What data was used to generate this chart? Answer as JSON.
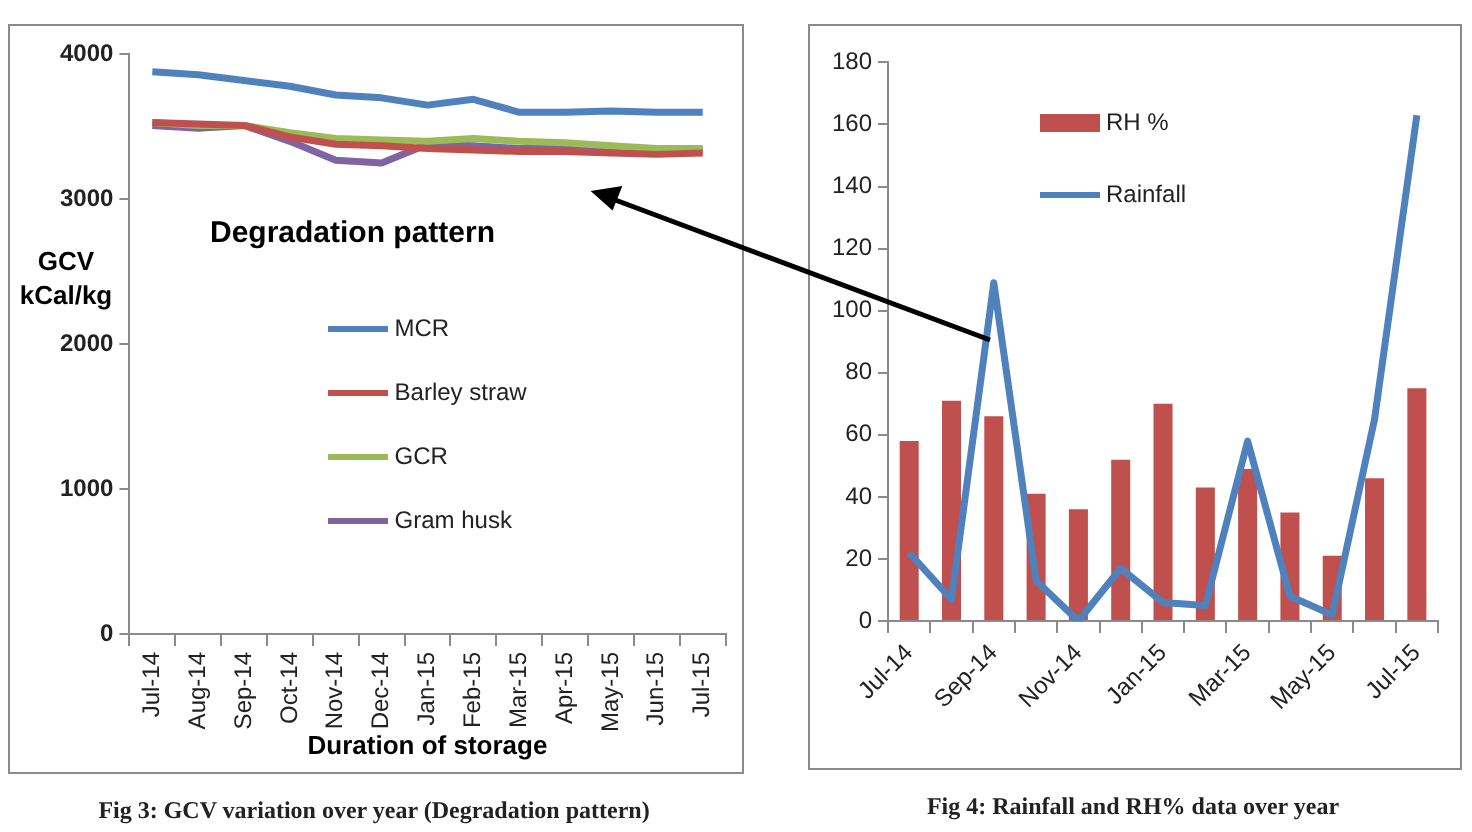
{
  "chart_data": [
    {
      "type": "line",
      "xlabel": "Duration of storage",
      "ylabel": "GCV kCal/kg",
      "categories": [
        "Jul-14",
        "Aug-14",
        "Sep-14",
        "Oct-14",
        "Nov-14",
        "Dec-14",
        "Jan-15",
        "Feb-15",
        "Mar-15",
        "Apr-15",
        "May-15",
        "Jun-15",
        "Jul-15"
      ],
      "series": [
        {
          "name": "MCR",
          "color": "#4f81bd",
          "values": [
            3880,
            3860,
            3820,
            3780,
            3720,
            3700,
            3650,
            3690,
            3600,
            3600,
            3610,
            3600,
            3600
          ]
        },
        {
          "name": "Barley straw",
          "color": "#c0504d",
          "values": [
            3530,
            3520,
            3510,
            3430,
            3380,
            3370,
            3350,
            3340,
            3330,
            3330,
            3320,
            3310,
            3320
          ]
        },
        {
          "name": "GCR",
          "color": "#9bbb59",
          "values": [
            3530,
            3510,
            3510,
            3460,
            3420,
            3410,
            3400,
            3420,
            3400,
            3390,
            3370,
            3350,
            3350
          ]
        },
        {
          "name": "Gram husk",
          "color": "#8064a2",
          "values": [
            3510,
            3490,
            3510,
            3400,
            3270,
            3250,
            3380,
            3370,
            3350,
            3350,
            3340,
            3340,
            3340
          ]
        }
      ],
      "ylim": [
        0,
        4000
      ],
      "yticks": [
        0,
        1000,
        2000,
        3000,
        4000
      ],
      "legend": "center",
      "marker": "none",
      "annotations": [
        "Degradation pattern",
        "Fig 3: GCV variation over year (Degradation pattern)"
      ]
    },
    {
      "type": "bar",
      "categories": [
        "Jul-14",
        null,
        "Sep-14",
        null,
        "Nov-14",
        null,
        "Jan-15",
        null,
        "Mar-15",
        null,
        "May-15",
        null,
        "Jul-15"
      ],
      "series": [
        {
          "name": "RH %",
          "type": "bar",
          "color": "#c0504d",
          "values": [
            58,
            71,
            66,
            41,
            36,
            52,
            70,
            43,
            49,
            35,
            21,
            46,
            75
          ]
        },
        {
          "name": "Rainfall",
          "type": "line",
          "color": "#4f81bd",
          "values": [
            22,
            7,
            109,
            13,
            0,
            17,
            6,
            5,
            58,
            8,
            2,
            65,
            163
          ]
        }
      ],
      "ylim": [
        0,
        180
      ],
      "yticks": [
        0,
        20,
        40,
        60,
        80,
        100,
        120,
        140,
        160,
        180
      ],
      "legend": "top",
      "marker": "none",
      "annotations": [
        "Fig 4: Rainfall and RH% data over year"
      ]
    }
  ]
}
